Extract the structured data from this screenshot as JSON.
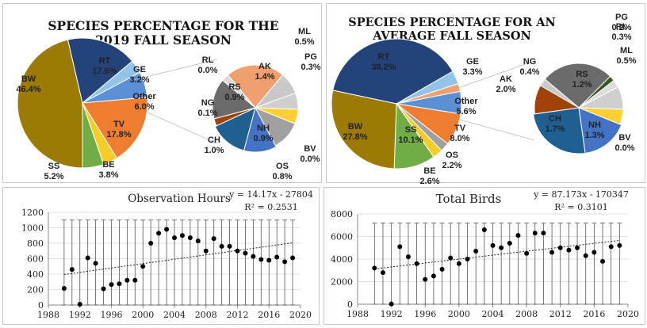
{
  "colors": {
    "BW": "#9b7a06",
    "RT": "#23437a",
    "GE": "#92c3e8",
    "Other": "#5b8fd6",
    "TV": "#ee7d2f",
    "BE": "#f6cd27",
    "SS": "#70ad47",
    "AK": "#f0a06e",
    "PG": "#c8c8c8",
    "ML": "#cfcfcf",
    "BV": "#ffcf33",
    "OS": "#a0a0a0",
    "NH": "#4472c4",
    "CH": "#205f91",
    "NG": "#a14306",
    "RS": "#6b6b6b",
    "RL": "#dcdcdc",
    "dark_green": "#375623"
  },
  "chart_data": [
    {
      "type": "pie",
      "title": "SPECIES PERCENTAGE FOR THE 2019 FALL SEASON",
      "title_lines": [
        "SPECIES PERCENTAGE FOR THE",
        "2019 FALL SEASON"
      ],
      "slices": [
        {
          "label": "BW",
          "value_text": "46.4%",
          "value": 46.4
        },
        {
          "label": "RT",
          "value_text": "17.6%",
          "value": 17.6
        },
        {
          "label": "GE",
          "value_text": "3.2%",
          "value": 3.2
        },
        {
          "label": "Other",
          "value_text": "6.0%",
          "value": 6.0
        },
        {
          "label": "TV",
          "value_text": "17.8%",
          "value": 17.8
        },
        {
          "label": "BE",
          "value_text": "3.8%",
          "value": 3.8
        },
        {
          "label": "SS",
          "value_text": "5.2%",
          "value": 5.2
        }
      ],
      "breakdown": [
        {
          "label": "AK",
          "value_text": "1.4%",
          "value": 1.4
        },
        {
          "label": "PG",
          "value_text": "0.3%",
          "value": 0.3
        },
        {
          "label": "ML",
          "value_text": "0.5%",
          "value": 0.5
        },
        {
          "label": "BV",
          "value_text": "0.0%",
          "value": 0.0
        },
        {
          "label": "OS",
          "value_text": "0.8%",
          "value": 0.8
        },
        {
          "label": "NH",
          "value_text": "0.9%",
          "value": 0.9
        },
        {
          "label": "CH",
          "value_text": "1.0%",
          "value": 1.0
        },
        {
          "label": "NG",
          "value_text": "0.1%",
          "value": 0.1
        },
        {
          "label": "RS",
          "value_text": "0.9%",
          "value": 0.9
        },
        {
          "label": "RL",
          "value_text": "0.0%",
          "value": 0.0
        }
      ]
    },
    {
      "type": "pie",
      "title": "SPECIES PERCENTAGE FOR AN AVERAGE FALL SEASON",
      "title_lines": [
        "SPECIES PERCENTAGE FOR AN",
        "AVERAGE FALL SEASON"
      ],
      "slices": [
        {
          "label": "RT",
          "value_text": "38.2%",
          "value": 38.2
        },
        {
          "label": "GE",
          "value_text": "3.3%",
          "value": 3.3
        },
        {
          "label": "AK",
          "value_text": "2.0%",
          "value": 2.0
        },
        {
          "label": "Other",
          "value_text": "5.6%",
          "value": 5.6
        },
        {
          "label": "TV",
          "value_text": "8.0%",
          "value": 8.0
        },
        {
          "label": "OS",
          "value_text": "2.2%",
          "value": 2.2
        },
        {
          "label": "BE",
          "value_text": "2.6%",
          "value": 2.6
        },
        {
          "label": "SS",
          "value_text": "10.1%",
          "value": 10.1
        },
        {
          "label": "BW",
          "value_text": "27.8%",
          "value": 27.8
        }
      ],
      "breakdown": [
        {
          "label": "RS",
          "value_text": "1.2%",
          "value": 1.2
        },
        {
          "label": "PG",
          "value_text": "0.2%",
          "value": 0.2
        },
        {
          "label": "RL",
          "value_text": "0.3%",
          "value": 0.3
        },
        {
          "label": "ML",
          "value_text": "0.5%",
          "value": 0.5
        },
        {
          "label": "BV",
          "value_text": "0.0%",
          "value": 0.0
        },
        {
          "label": "NH",
          "value_text": "1.3%",
          "value": 1.3
        },
        {
          "label": "CH",
          "value_text": "1.7%",
          "value": 1.7
        },
        {
          "label": "NG",
          "value_text": "0.4%",
          "value": 0.4
        }
      ]
    },
    {
      "type": "scatter",
      "title": "Observation Hours",
      "equation": "y = 14.17x - 27804",
      "r2": "R² = 0.2531",
      "xlim": [
        1988,
        2020
      ],
      "ylim": [
        0,
        1200
      ],
      "xticks": [
        1988,
        1992,
        1996,
        2000,
        2004,
        2008,
        2012,
        2016,
        2020
      ],
      "yticks": [
        0,
        200,
        400,
        600,
        800,
        1000,
        1200
      ],
      "error_range": [
        0,
        1100
      ],
      "trend": {
        "slope": 14.17,
        "intercept": -27804
      },
      "x": [
        1990,
        1991,
        1992,
        1993,
        1994,
        1995,
        1996,
        1997,
        1998,
        1999,
        2000,
        2001,
        2002,
        2003,
        2004,
        2005,
        2006,
        2007,
        2008,
        2009,
        2010,
        2011,
        2012,
        2013,
        2014,
        2015,
        2016,
        2017,
        2018,
        2019
      ],
      "y": [
        215,
        460,
        10,
        610,
        540,
        210,
        265,
        275,
        320,
        320,
        500,
        800,
        930,
        980,
        870,
        900,
        870,
        830,
        700,
        860,
        760,
        760,
        700,
        670,
        630,
        590,
        580,
        620,
        560,
        610
      ]
    },
    {
      "type": "scatter",
      "title": "Total Birds",
      "equation": "y = 87.173x - 170347",
      "r2": "R² = 0.3101",
      "xlim": [
        1988,
        2020
      ],
      "ylim": [
        0,
        8000
      ],
      "xticks": [
        1988,
        1992,
        1996,
        2000,
        2004,
        2008,
        2012,
        2016,
        2020
      ],
      "yticks": [
        0,
        2000,
        4000,
        6000,
        8000
      ],
      "error_range": [
        0,
        7200
      ],
      "trend": {
        "slope": 87.173,
        "intercept": -170347
      },
      "x": [
        1990,
        1991,
        1992,
        1993,
        1994,
        1995,
        1996,
        1997,
        1998,
        1999,
        2000,
        2001,
        2002,
        2003,
        2004,
        2005,
        2006,
        2007,
        2008,
        2009,
        2010,
        2011,
        2012,
        2013,
        2014,
        2015,
        2016,
        2017,
        2018,
        2019
      ],
      "y": [
        3200,
        2800,
        30,
        5100,
        4200,
        3600,
        2200,
        2500,
        3100,
        4100,
        3600,
        4000,
        4700,
        6600,
        5200,
        5000,
        5400,
        6100,
        4500,
        6300,
        6300,
        4600,
        5000,
        4800,
        5000,
        4300,
        4600,
        3800,
        5100,
        5200
      ]
    }
  ]
}
